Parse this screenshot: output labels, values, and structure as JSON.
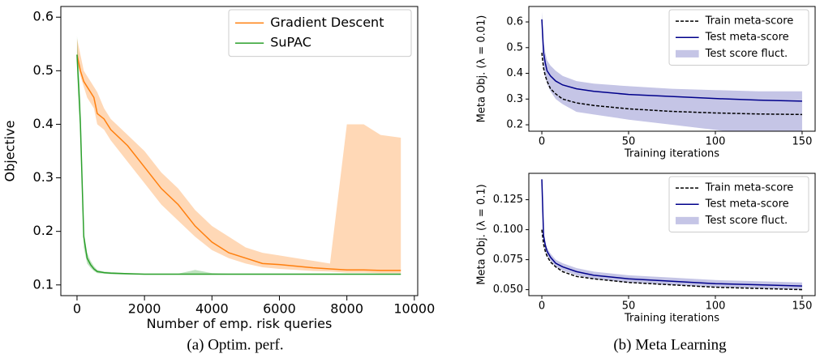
{
  "captions": [
    "(a) Optim. perf.",
    "(b) Meta Learning"
  ],
  "chart_data": [
    {
      "type": "line",
      "x_label": "Number of emp. risk queries",
      "y_label": "Objective",
      "x": [
        0,
        100,
        200,
        300,
        400,
        500,
        600,
        800,
        1000,
        1500,
        2000,
        2500,
        3000,
        3500,
        4000,
        4500,
        5000,
        5500,
        6000,
        6500,
        7000,
        7500,
        8000,
        8500,
        9000,
        9600
      ],
      "xlim": [
        -480,
        10100
      ],
      "xticks": [
        0,
        2000,
        4000,
        6000,
        8000,
        10000
      ],
      "ylim": [
        0.08,
        0.62
      ],
      "yticks": [
        0.1,
        0.2,
        0.3,
        0.4,
        0.5,
        0.6
      ],
      "legend": "upper right",
      "series": [
        {
          "name": "Gradient Descent",
          "color": "#ff7f0e",
          "values": [
            0.53,
            0.5,
            0.48,
            0.47,
            0.46,
            0.45,
            0.42,
            0.41,
            0.39,
            0.36,
            0.32,
            0.28,
            0.25,
            0.21,
            0.18,
            0.16,
            0.15,
            0.14,
            0.138,
            0.135,
            0.132,
            0.13,
            0.128,
            0.128,
            0.127,
            0.127
          ],
          "upper": [
            0.56,
            0.53,
            0.5,
            0.49,
            0.48,
            0.47,
            0.46,
            0.43,
            0.41,
            0.38,
            0.35,
            0.31,
            0.28,
            0.24,
            0.21,
            0.19,
            0.17,
            0.16,
            0.155,
            0.15,
            0.145,
            0.14,
            0.4,
            0.4,
            0.38,
            0.375
          ],
          "lower": [
            0.52,
            0.49,
            0.47,
            0.45,
            0.44,
            0.43,
            0.4,
            0.39,
            0.37,
            0.33,
            0.29,
            0.25,
            0.22,
            0.19,
            0.165,
            0.15,
            0.14,
            0.133,
            0.13,
            0.128,
            0.126,
            0.125,
            0.123,
            0.123,
            0.122,
            0.122
          ]
        },
        {
          "name": "SuPAC",
          "color": "#2ca02c",
          "values": [
            0.53,
            0.4,
            0.19,
            0.15,
            0.138,
            0.13,
            0.125,
            0.123,
            0.122,
            0.121,
            0.12,
            0.12,
            0.12,
            0.12,
            0.12,
            0.12,
            0.12,
            0.12,
            0.12,
            0.12,
            0.12,
            0.12,
            0.12,
            0.12,
            0.12,
            0.12
          ],
          "upper": [
            0.565,
            0.45,
            0.2,
            0.16,
            0.145,
            0.135,
            0.128,
            0.125,
            0.124,
            0.122,
            0.121,
            0.121,
            0.121,
            0.128,
            0.122,
            0.121,
            0.121,
            0.121,
            0.121,
            0.121,
            0.121,
            0.121,
            0.121,
            0.121,
            0.121,
            0.121
          ],
          "lower": [
            0.52,
            0.38,
            0.17,
            0.14,
            0.132,
            0.126,
            0.122,
            0.121,
            0.12,
            0.119,
            0.119,
            0.119,
            0.119,
            0.119,
            0.119,
            0.119,
            0.119,
            0.119,
            0.119,
            0.119,
            0.119,
            0.119,
            0.119,
            0.119,
            0.119,
            0.119
          ]
        }
      ]
    },
    {
      "type": "line",
      "x_label": "Training iterations",
      "y_label": "Meta Obj. (λ = 0.01)",
      "x": [
        0,
        1,
        2,
        3,
        5,
        8,
        12,
        20,
        30,
        50,
        75,
        100,
        125,
        150
      ],
      "xlim": [
        -7.5,
        157.5
      ],
      "xticks": [
        0,
        50,
        100,
        150
      ],
      "ylim": [
        0.175,
        0.66
      ],
      "yticks": [
        0.2,
        0.3,
        0.4,
        0.5,
        0.6
      ],
      "legend": "upper right",
      "series": [
        {
          "name": "Train meta-score",
          "color": "#000000",
          "linestyle": "dashed",
          "values": [
            0.48,
            0.42,
            0.39,
            0.37,
            0.34,
            0.32,
            0.3,
            0.285,
            0.275,
            0.262,
            0.252,
            0.246,
            0.242,
            0.24
          ]
        },
        {
          "name": "Test meta-score",
          "color": "#00008b",
          "values": [
            0.61,
            0.48,
            0.44,
            0.41,
            0.39,
            0.37,
            0.355,
            0.34,
            0.33,
            0.318,
            0.31,
            0.302,
            0.296,
            0.292
          ]
        },
        {
          "name": "Test score fluct.",
          "color": "#c5c5e6",
          "upper": [
            0.64,
            0.52,
            0.48,
            0.45,
            0.43,
            0.41,
            0.39,
            0.37,
            0.36,
            0.35,
            0.34,
            0.335,
            0.33,
            0.33
          ],
          "lower": [
            0.56,
            0.43,
            0.39,
            0.36,
            0.33,
            0.3,
            0.28,
            0.25,
            0.24,
            0.22,
            0.2,
            0.18,
            0.16,
            0.16
          ]
        }
      ]
    },
    {
      "type": "line",
      "x_label": "Training iterations",
      "y_label": "Meta Obj. (λ = 0.1)",
      "x": [
        0,
        1,
        2,
        3,
        5,
        8,
        12,
        20,
        30,
        50,
        75,
        100,
        125,
        150
      ],
      "xlim": [
        -7.5,
        157.5
      ],
      "xticks": [
        0,
        50,
        100,
        150
      ],
      "ylim": [
        0.045,
        0.147
      ],
      "yticks": [
        {
          "value": 0.05,
          "label": "0.050"
        },
        {
          "value": 0.075,
          "label": "0.075"
        },
        {
          "value": 0.1,
          "label": "0.100"
        },
        {
          "value": 0.125,
          "label": "0.125"
        }
      ],
      "legend": "upper right",
      "series": [
        {
          "name": "Train meta-score",
          "color": "#000000",
          "linestyle": "dashed",
          "values": [
            0.1,
            0.088,
            0.082,
            0.078,
            0.073,
            0.069,
            0.065,
            0.061,
            0.059,
            0.056,
            0.054,
            0.052,
            0.051,
            0.05
          ]
        },
        {
          "name": "Test meta-score",
          "color": "#00008b",
          "values": [
            0.142,
            0.095,
            0.087,
            0.082,
            0.077,
            0.072,
            0.069,
            0.065,
            0.062,
            0.059,
            0.057,
            0.055,
            0.054,
            0.053
          ]
        },
        {
          "name": "Test score fluct.",
          "color": "#c5c5e6",
          "upper": [
            0.143,
            0.098,
            0.09,
            0.085,
            0.08,
            0.075,
            0.072,
            0.068,
            0.065,
            0.062,
            0.06,
            0.058,
            0.057,
            0.056
          ],
          "lower": [
            0.14,
            0.092,
            0.084,
            0.079,
            0.074,
            0.069,
            0.066,
            0.062,
            0.059,
            0.056,
            0.054,
            0.052,
            0.051,
            0.05
          ]
        }
      ]
    }
  ]
}
